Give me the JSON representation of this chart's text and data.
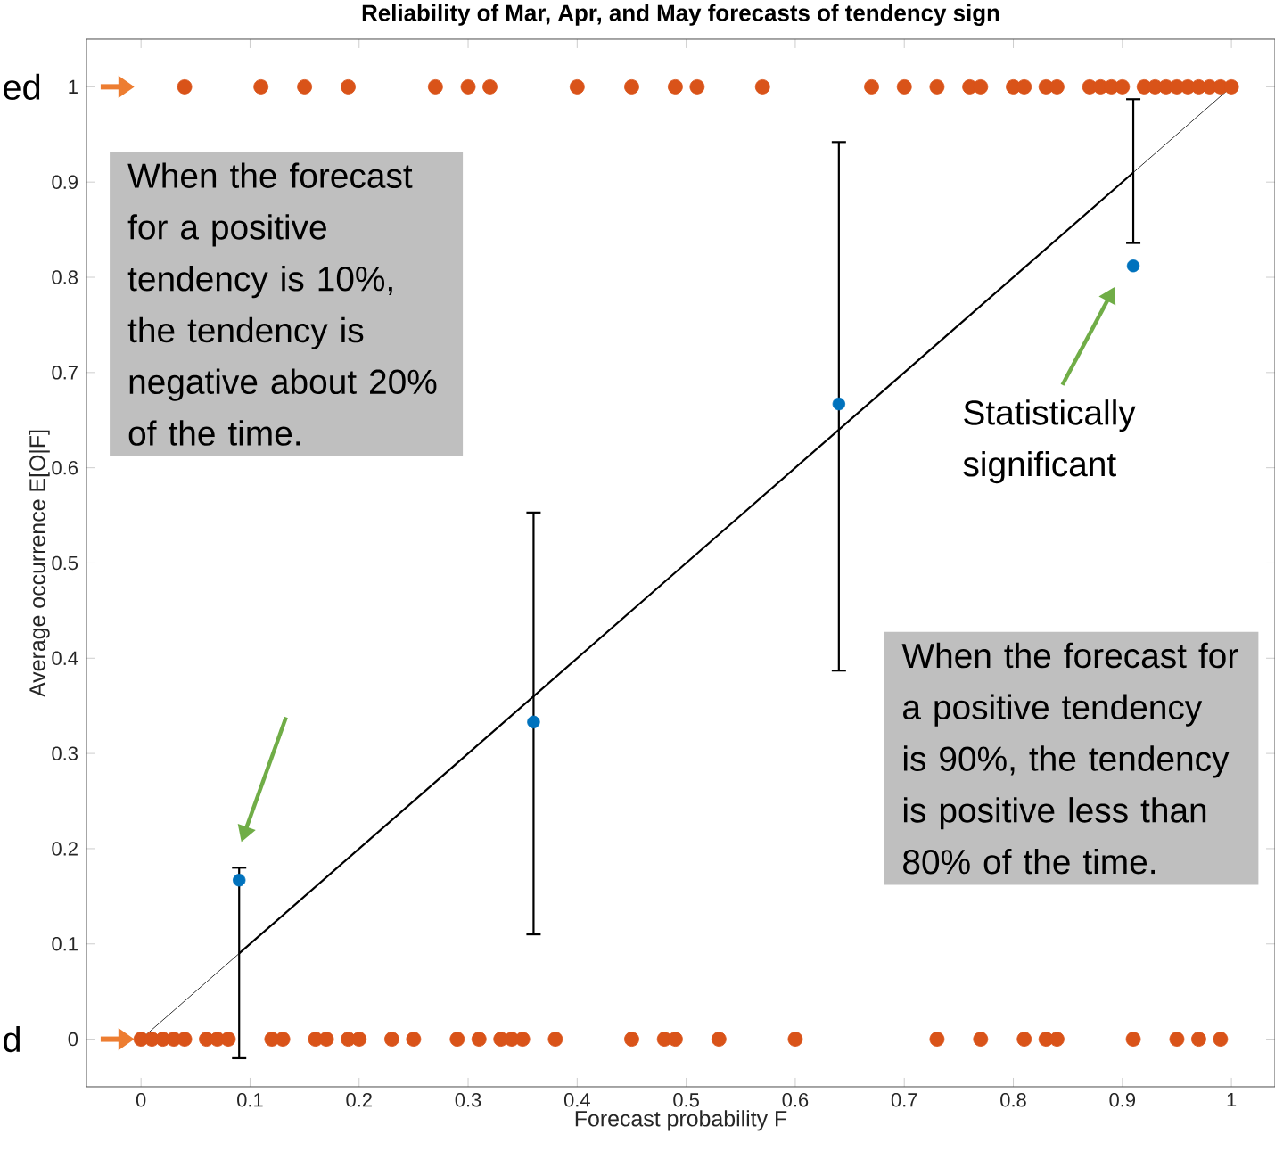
{
  "chart_data": {
    "type": "scatter",
    "title": "Reliability of Mar, Apr, and May forecasts of tendency sign",
    "xlabel": "Forecast probability F",
    "ylabel": "Average occurrence E[O|F]",
    "xlim": [
      -0.05,
      1.04
    ],
    "ylim": [
      -0.05,
      1.05
    ],
    "xticks": [
      0,
      0.1,
      0.2,
      0.3,
      0.4,
      0.5,
      0.6,
      0.7,
      0.8,
      0.9,
      1
    ],
    "yticks": [
      0,
      0.1,
      0.2,
      0.3,
      0.4,
      0.5,
      0.6,
      0.7,
      0.8,
      0.9,
      1
    ],
    "marker": "circle",
    "grid": false,
    "series": [
      {
        "color": "#d95319",
        "x": [
          0.04,
          0.11,
          0.15,
          0.19,
          0.27,
          0.3,
          0.32,
          0.4,
          0.45,
          0.49,
          0.51,
          0.57,
          0.67,
          0.7,
          0.73,
          0.76,
          0.77,
          0.8,
          0.81,
          0.83,
          0.84,
          0.87,
          0.88,
          0.89,
          0.9,
          0.92,
          0.93,
          0.94,
          0.95,
          0.96,
          0.97,
          0.98,
          0.99,
          1.0
        ],
        "values": [
          1,
          1,
          1,
          1,
          1,
          1,
          1,
          1,
          1,
          1,
          1,
          1,
          1,
          1,
          1,
          1,
          1,
          1,
          1,
          1,
          1,
          1,
          1,
          1,
          1,
          1,
          1,
          1,
          1,
          1,
          1,
          1,
          1,
          1
        ]
      },
      {
        "color": "#d95319",
        "x": [
          0.0,
          0.01,
          0.02,
          0.03,
          0.04,
          0.06,
          0.07,
          0.08,
          0.12,
          0.13,
          0.16,
          0.17,
          0.19,
          0.2,
          0.23,
          0.25,
          0.29,
          0.31,
          0.33,
          0.34,
          0.35,
          0.38,
          0.45,
          0.48,
          0.49,
          0.53,
          0.6,
          0.73,
          0.77,
          0.81,
          0.83,
          0.84,
          0.91,
          0.95,
          0.97,
          0.99
        ],
        "values": [
          0,
          0,
          0,
          0,
          0,
          0,
          0,
          0,
          0,
          0,
          0,
          0,
          0,
          0,
          0,
          0,
          0,
          0,
          0,
          0,
          0,
          0,
          0,
          0,
          0,
          0,
          0,
          0,
          0,
          0,
          0,
          0,
          0,
          0,
          0,
          0
        ]
      },
      {
        "color": "#0072bd",
        "x": [
          0.09,
          0.36,
          0.64,
          0.91
        ],
        "values": [
          0.167,
          0.333,
          0.667,
          0.812
        ],
        "errors": [
          [
            -0.02,
            0.18
          ],
          [
            0.11,
            0.553
          ],
          [
            0.387,
            0.942
          ],
          [
            0.836,
            0.987
          ]
        ]
      },
      {
        "type": "line",
        "marker": "none",
        "color": "#000000",
        "x": [
          0,
          1
        ],
        "values": [
          0,
          1
        ]
      },
      {
        "type": "line",
        "marker": "none",
        "color": "#000000",
        "x": [
          0.09,
          0.91
        ],
        "values": [
          0.09,
          0.91
        ]
      }
    ],
    "annotations": [
      "When the forecast for a positive  tendency is 10%, the tendency is negative about 20% of the time.",
      "When the forecast for a positive tendency is 90%, the tendency is positive less than 80% of the time.",
      "Statistically significant",
      "ed",
      "d"
    ]
  }
}
